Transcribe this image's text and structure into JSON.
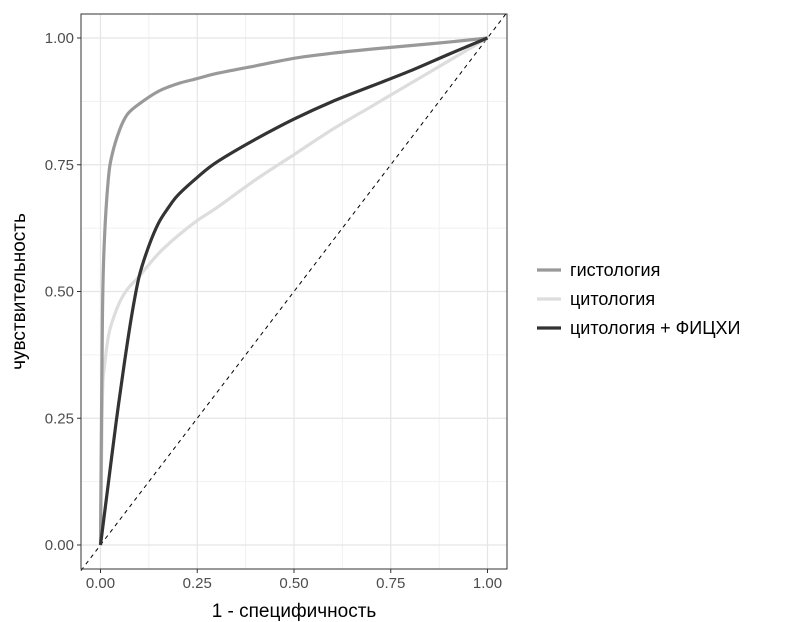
{
  "chart_data": {
    "type": "line",
    "title": "",
    "xlabel": "1 - специфичность",
    "ylabel": "чувствительность",
    "xlim": [
      0,
      1
    ],
    "ylim": [
      0,
      1
    ],
    "x_ticks": [
      "0.00",
      "0.25",
      "0.50",
      "0.75",
      "1.00"
    ],
    "y_ticks": [
      "0.00",
      "0.25",
      "0.50",
      "0.75",
      "1.00"
    ],
    "grid": true,
    "legend_position": "right",
    "reference_line": {
      "style": "dashed",
      "x": [
        0,
        1
      ],
      "y": [
        0,
        1
      ],
      "color": "#000000"
    },
    "series": [
      {
        "name": "гистология",
        "color": "#999999",
        "x": [
          0,
          0.005,
          0.01,
          0.02,
          0.03,
          0.05,
          0.07,
          0.1,
          0.15,
          0.2,
          0.25,
          0.3,
          0.4,
          0.5,
          0.6,
          0.7,
          0.8,
          0.9,
          1.0
        ],
        "y": [
          0,
          0.45,
          0.6,
          0.72,
          0.77,
          0.82,
          0.85,
          0.87,
          0.895,
          0.91,
          0.92,
          0.93,
          0.945,
          0.96,
          0.97,
          0.978,
          0.985,
          0.992,
          1.0
        ]
      },
      {
        "name": "цитология",
        "color": "#dddddd",
        "x": [
          0,
          0.005,
          0.01,
          0.02,
          0.03,
          0.05,
          0.07,
          0.1,
          0.15,
          0.2,
          0.25,
          0.3,
          0.4,
          0.5,
          0.6,
          0.7,
          0.8,
          0.9,
          1.0
        ],
        "y": [
          0,
          0.29,
          0.35,
          0.41,
          0.44,
          0.48,
          0.505,
          0.53,
          0.575,
          0.61,
          0.64,
          0.665,
          0.72,
          0.77,
          0.82,
          0.865,
          0.91,
          0.955,
          1.0
        ]
      },
      {
        "name": "цитология + ФИЦХИ",
        "color": "#333333",
        "x": [
          0,
          0.02,
          0.04,
          0.06,
          0.08,
          0.1,
          0.125,
          0.15,
          0.175,
          0.2,
          0.25,
          0.3,
          0.4,
          0.5,
          0.6,
          0.7,
          0.8,
          0.9,
          1.0
        ],
        "y": [
          0,
          0.12,
          0.24,
          0.35,
          0.45,
          0.53,
          0.59,
          0.635,
          0.665,
          0.69,
          0.725,
          0.755,
          0.8,
          0.84,
          0.875,
          0.905,
          0.935,
          0.968,
          1.0
        ]
      }
    ]
  }
}
